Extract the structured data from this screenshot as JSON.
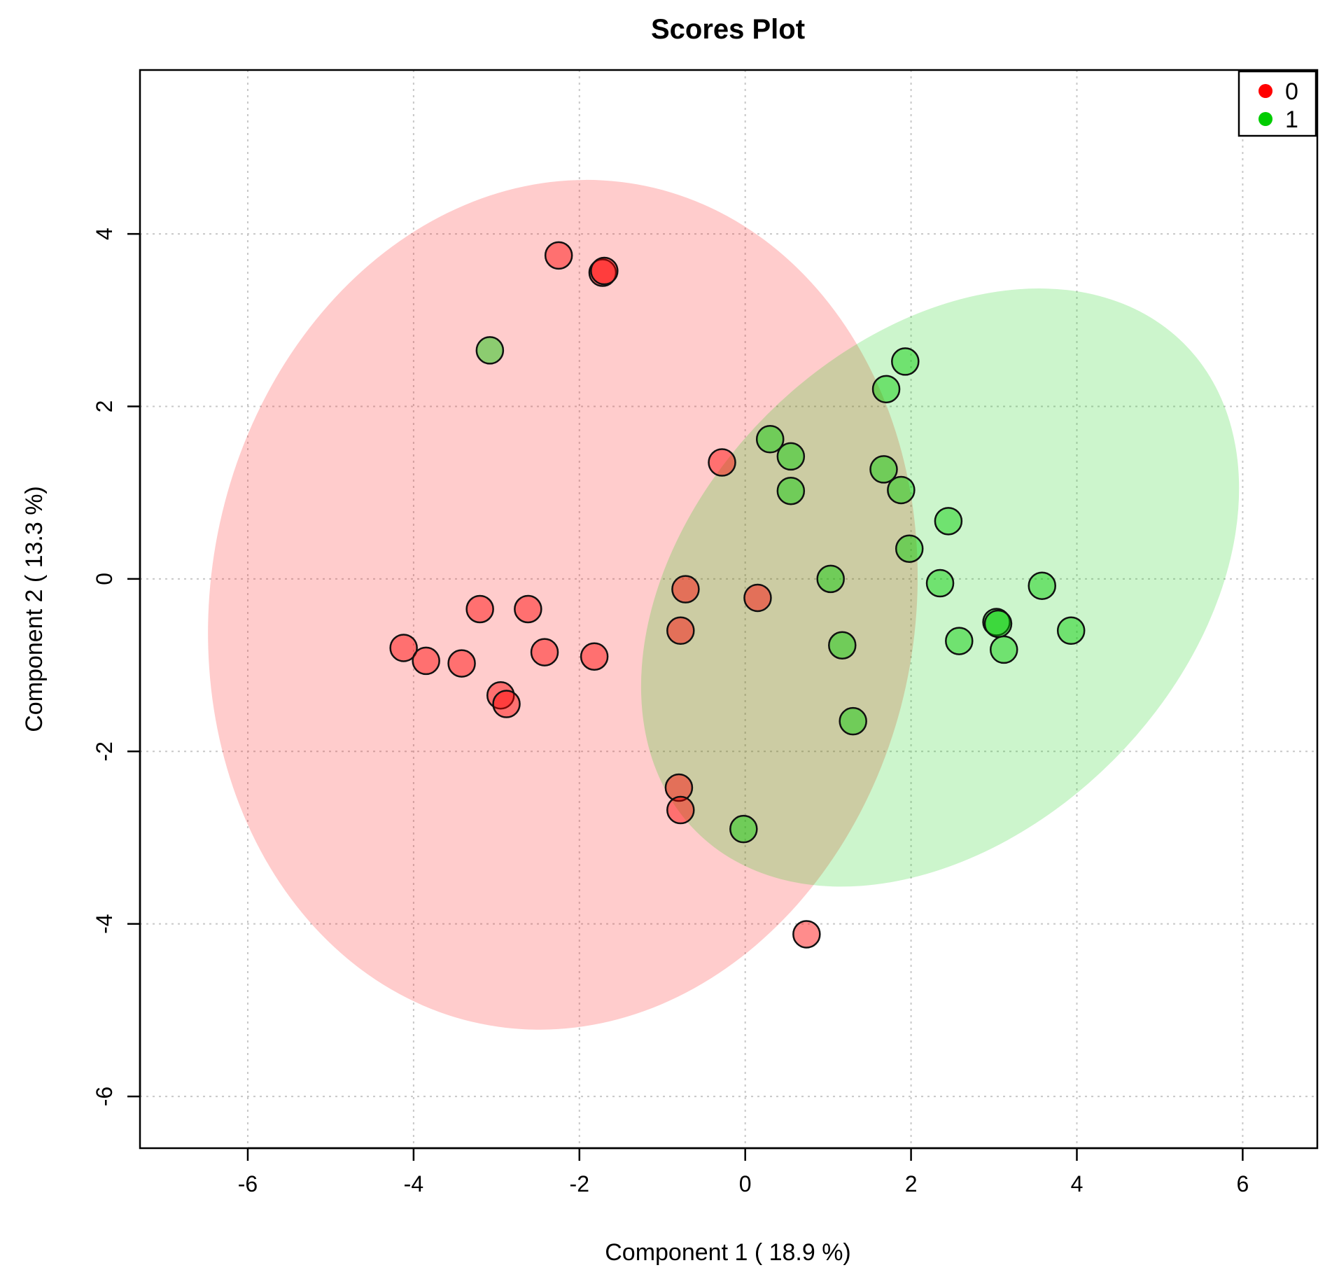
{
  "chart_data": {
    "type": "scatter",
    "title": "Scores Plot",
    "xlabel": "Component 1 ( 18.9 %)",
    "ylabel": "Component 2 ( 13.3 %)",
    "xlim": [
      -7.3,
      6.9
    ],
    "ylim": [
      -6.6,
      5.9
    ],
    "xticks": [
      -6,
      -4,
      -2,
      0,
      2,
      4,
      6
    ],
    "yticks": [
      -6,
      -4,
      -2,
      0,
      2,
      4
    ],
    "grid": true,
    "legend": {
      "position": "top-right",
      "entries": [
        "0",
        "1"
      ]
    },
    "colors": {
      "0": "#ff0000",
      "1": "#00cc00"
    },
    "series": [
      {
        "name": "0",
        "color": "#ff0000",
        "ellipse": {
          "cx": -2.2,
          "cy": -0.3,
          "rx": 4.25,
          "ry": 4.95,
          "rotation_deg": -10
        },
        "points": [
          [
            -2.25,
            3.75
          ],
          [
            -1.72,
            3.55
          ],
          [
            -1.7,
            3.57
          ],
          [
            -0.28,
            1.35
          ],
          [
            -3.2,
            -0.35
          ],
          [
            -2.62,
            -0.35
          ],
          [
            -4.12,
            -0.8
          ],
          [
            -3.85,
            -0.95
          ],
          [
            -3.42,
            -0.98
          ],
          [
            -2.42,
            -0.85
          ],
          [
            -1.82,
            -0.9
          ],
          [
            -2.95,
            -1.35
          ],
          [
            -2.88,
            -1.45
          ],
          [
            -0.72,
            -0.12
          ],
          [
            -0.78,
            -0.6
          ],
          [
            0.15,
            -0.22
          ],
          [
            -0.8,
            -2.42
          ],
          [
            -0.78,
            -2.68
          ],
          [
            0.74,
            -4.12
          ]
        ]
      },
      {
        "name": "1",
        "color": "#00cc00",
        "ellipse": {
          "cx": 2.35,
          "cy": -0.1,
          "rx": 2.95,
          "ry": 4.0,
          "rotation_deg": -45
        },
        "points": [
          [
            -3.08,
            2.65
          ],
          [
            1.93,
            2.52
          ],
          [
            1.7,
            2.2
          ],
          [
            0.3,
            1.62
          ],
          [
            0.55,
            1.42
          ],
          [
            0.55,
            1.02
          ],
          [
            1.67,
            1.27
          ],
          [
            1.88,
            1.03
          ],
          [
            2.45,
            0.67
          ],
          [
            1.98,
            0.35
          ],
          [
            1.03,
            0.0
          ],
          [
            2.35,
            -0.05
          ],
          [
            3.58,
            -0.08
          ],
          [
            3.03,
            -0.5
          ],
          [
            3.05,
            -0.52
          ],
          [
            3.93,
            -0.6
          ],
          [
            2.58,
            -0.72
          ],
          [
            3.12,
            -0.82
          ],
          [
            1.17,
            -0.77
          ],
          [
            1.3,
            -1.65
          ],
          [
            -0.02,
            -2.9
          ]
        ]
      }
    ]
  }
}
